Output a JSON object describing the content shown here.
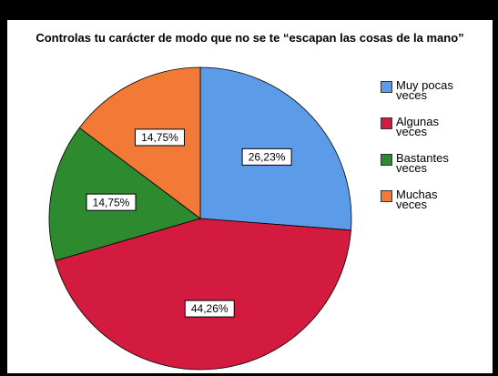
{
  "chart_data": {
    "type": "pie",
    "title": "Controlas tu carácter de modo que no se te “escapan las cosas de la mano”",
    "categories": [
      "Muy pocas veces",
      "Algunas veces",
      "Bastantes veces",
      "Muchas veces"
    ],
    "values": [
      26.23,
      44.26,
      14.75,
      14.75
    ],
    "value_labels": [
      "26,23%",
      "44,26%",
      "14,75%",
      "14,75%"
    ],
    "colors": [
      "#5b9be8",
      "#d31a3f",
      "#2d8a2f",
      "#f27a36"
    ],
    "legend": "right"
  }
}
